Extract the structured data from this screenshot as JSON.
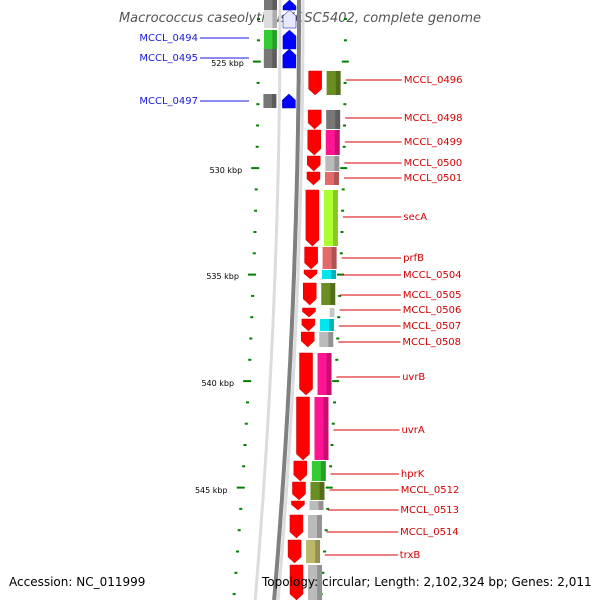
{
  "title": "Macrococcus caseolyticus JCSC5402, complete genome",
  "accession_text": "Accession: NC_011999",
  "topology_text": "Topology: circular; Length: 2,102,324 bp; Genes: 2,011",
  "scale_labels": [
    "525 kbp",
    "530 kbp",
    "535 kbp",
    "540 kbp",
    "545 kbp"
  ],
  "colors": {
    "reverse_strand": "#0000ff",
    "forward_strand": "#ff0000",
    "reverse_label": "#1a1adc",
    "forward_label": "#d40000",
    "ticks": "#008000",
    "backbone": "#808080"
  },
  "reverse_genes": [
    {
      "label": "MCCL_0494",
      "cog_color": "#33cc33"
    },
    {
      "label": "MCCL_0495",
      "cog_color": "#777777"
    },
    {
      "label": "MCCL_0497",
      "cog_color": "#777777"
    }
  ],
  "forward_genes": [
    {
      "label": "MCCL_0496",
      "cog_color": "#6b8e23"
    },
    {
      "label": "MCCL_0498",
      "cog_color": "#777777"
    },
    {
      "label": "MCCL_0499",
      "cog_color": "#ff1493"
    },
    {
      "label": "MCCL_0500",
      "cog_color": "#bbbbbb"
    },
    {
      "label": "MCCL_0501",
      "cog_color": "#e36a6a"
    },
    {
      "label": "secA",
      "cog_color": "#adff2f"
    },
    {
      "label": "prfB",
      "cog_color": "#e36a6a"
    },
    {
      "label": "MCCL_0504",
      "cog_color": "#00e5ee"
    },
    {
      "label": "MCCL_0505",
      "cog_color": "#6b8e23"
    },
    {
      "label": "MCCL_0506",
      "cog_color": "#ffffff"
    },
    {
      "label": "MCCL_0507",
      "cog_color": "#00e5ee"
    },
    {
      "label": "MCCL_0508",
      "cog_color": "#bbbbbb"
    },
    {
      "label": "uvrB",
      "cog_color": "#ff1493"
    },
    {
      "label": "uvrA",
      "cog_color": "#ff1493"
    },
    {
      "label": "hprK",
      "cog_color": "#33cc33"
    },
    {
      "label": "MCCL_0512",
      "cog_color": "#6b8e23"
    },
    {
      "label": "MCCL_0513",
      "cog_color": "#bbbbbb"
    },
    {
      "label": "MCCL_0514",
      "cog_color": "#bbbbbb"
    },
    {
      "label": "trxB",
      "cog_color": "#bdb76b"
    }
  ]
}
